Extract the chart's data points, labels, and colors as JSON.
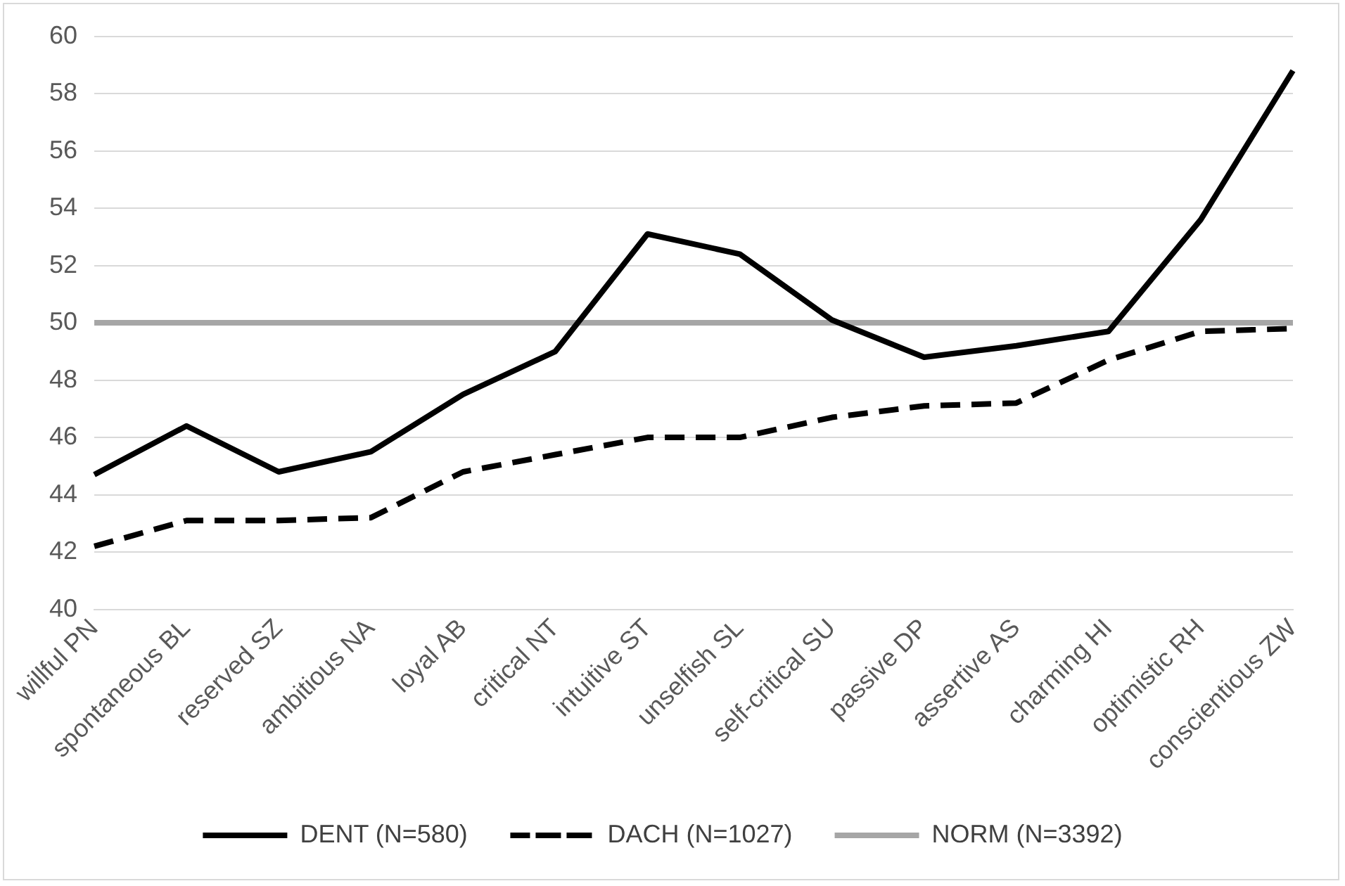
{
  "chart_data": {
    "type": "line",
    "categories": [
      "willful PN",
      "spontaneous BL",
      "reserved SZ",
      "ambitious NA",
      "loyal AB",
      "critical NT",
      "intuitive ST",
      "unselfish SL",
      "self-critical SU",
      "passive DP",
      "assertive AS",
      "charming HI",
      "optimistic RH",
      "conscientious ZW"
    ],
    "series": [
      {
        "name": "DENT (N=580)",
        "color": "#000000",
        "line_style": "solid",
        "values": [
          44.7,
          46.4,
          44.8,
          45.5,
          47.5,
          49.0,
          53.1,
          52.4,
          50.1,
          48.8,
          49.2,
          49.7,
          53.6,
          58.8
        ]
      },
      {
        "name": "DACH (N=1027)",
        "color": "#000000",
        "line_style": "dashed",
        "values": [
          42.2,
          43.1,
          43.1,
          43.2,
          44.8,
          45.4,
          46.0,
          46.0,
          46.7,
          47.1,
          47.2,
          48.7,
          49.7,
          49.8
        ]
      },
      {
        "name": "NORM (N=3392)",
        "color": "#a6a6a6",
        "line_style": "solid",
        "values": [
          50,
          50,
          50,
          50,
          50,
          50,
          50,
          50,
          50,
          50,
          50,
          50,
          50,
          50
        ]
      }
    ],
    "ylim": [
      40,
      60
    ],
    "yticks": [
      40,
      42,
      44,
      46,
      48,
      50,
      52,
      54,
      56,
      58,
      60
    ],
    "grid": "y",
    "legend": "bottom",
    "marker": "none"
  }
}
